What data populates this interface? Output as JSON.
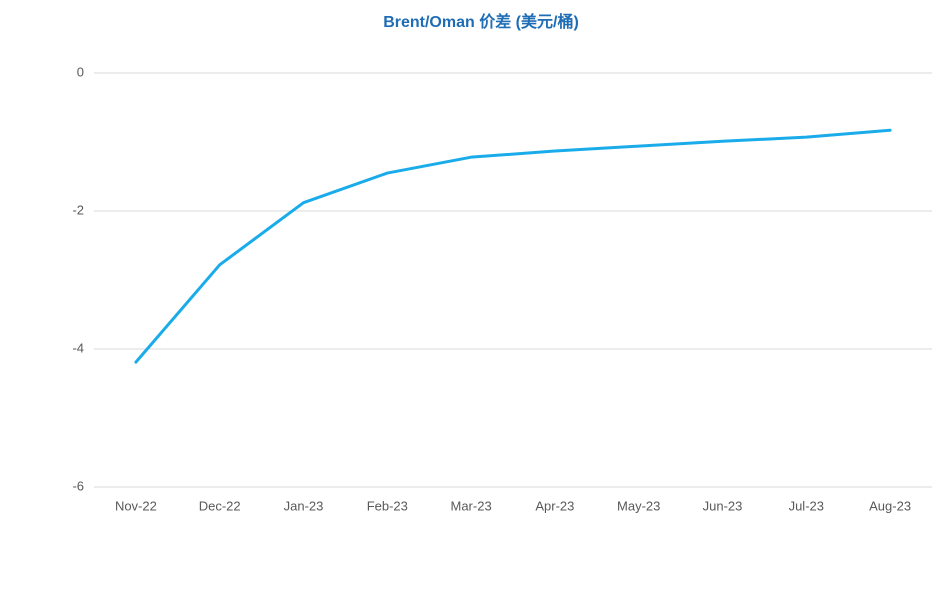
{
  "chart_data": {
    "type": "line",
    "title": "Brent/Oman 价差 (美元/桶)",
    "categories": [
      "Nov-22",
      "Dec-22",
      "Jan-23",
      "Feb-23",
      "Mar-23",
      "Apr-23",
      "May-23",
      "Jun-23",
      "Jul-23",
      "Aug-23"
    ],
    "series": [
      {
        "name": "Brent/Oman",
        "color": "#1aacea",
        "values": [
          -4.19,
          -2.78,
          -1.88,
          -1.45,
          -1.22,
          -1.13,
          -1.06,
          -0.99,
          -0.93,
          -0.83
        ]
      }
    ],
    "ylim": [
      -6,
      0
    ],
    "yticks": [
      0,
      -2,
      -4,
      -6
    ],
    "grid": true
  }
}
